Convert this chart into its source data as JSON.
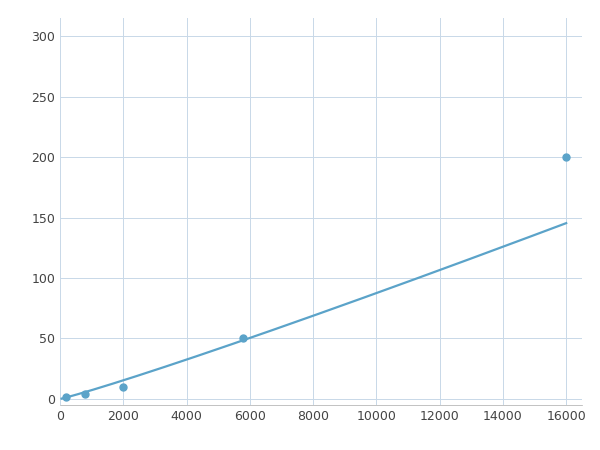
{
  "x_data": [
    200,
    800,
    2000,
    5800,
    16000
  ],
  "y_data": [
    2,
    4,
    10,
    50,
    200
  ],
  "line_color": "#5ba3c9",
  "marker_color": "#5ba3c9",
  "marker_size": 5,
  "line_width": 1.6,
  "xlim": [
    0,
    16500
  ],
  "ylim": [
    -5,
    315
  ],
  "xticks": [
    0,
    2000,
    4000,
    6000,
    8000,
    10000,
    12000,
    14000,
    16000
  ],
  "yticks": [
    0,
    50,
    100,
    150,
    200,
    250,
    300
  ],
  "grid_color": "#c8d8e8",
  "background_color": "#ffffff",
  "fig_width": 6.0,
  "fig_height": 4.5,
  "dpi": 100
}
